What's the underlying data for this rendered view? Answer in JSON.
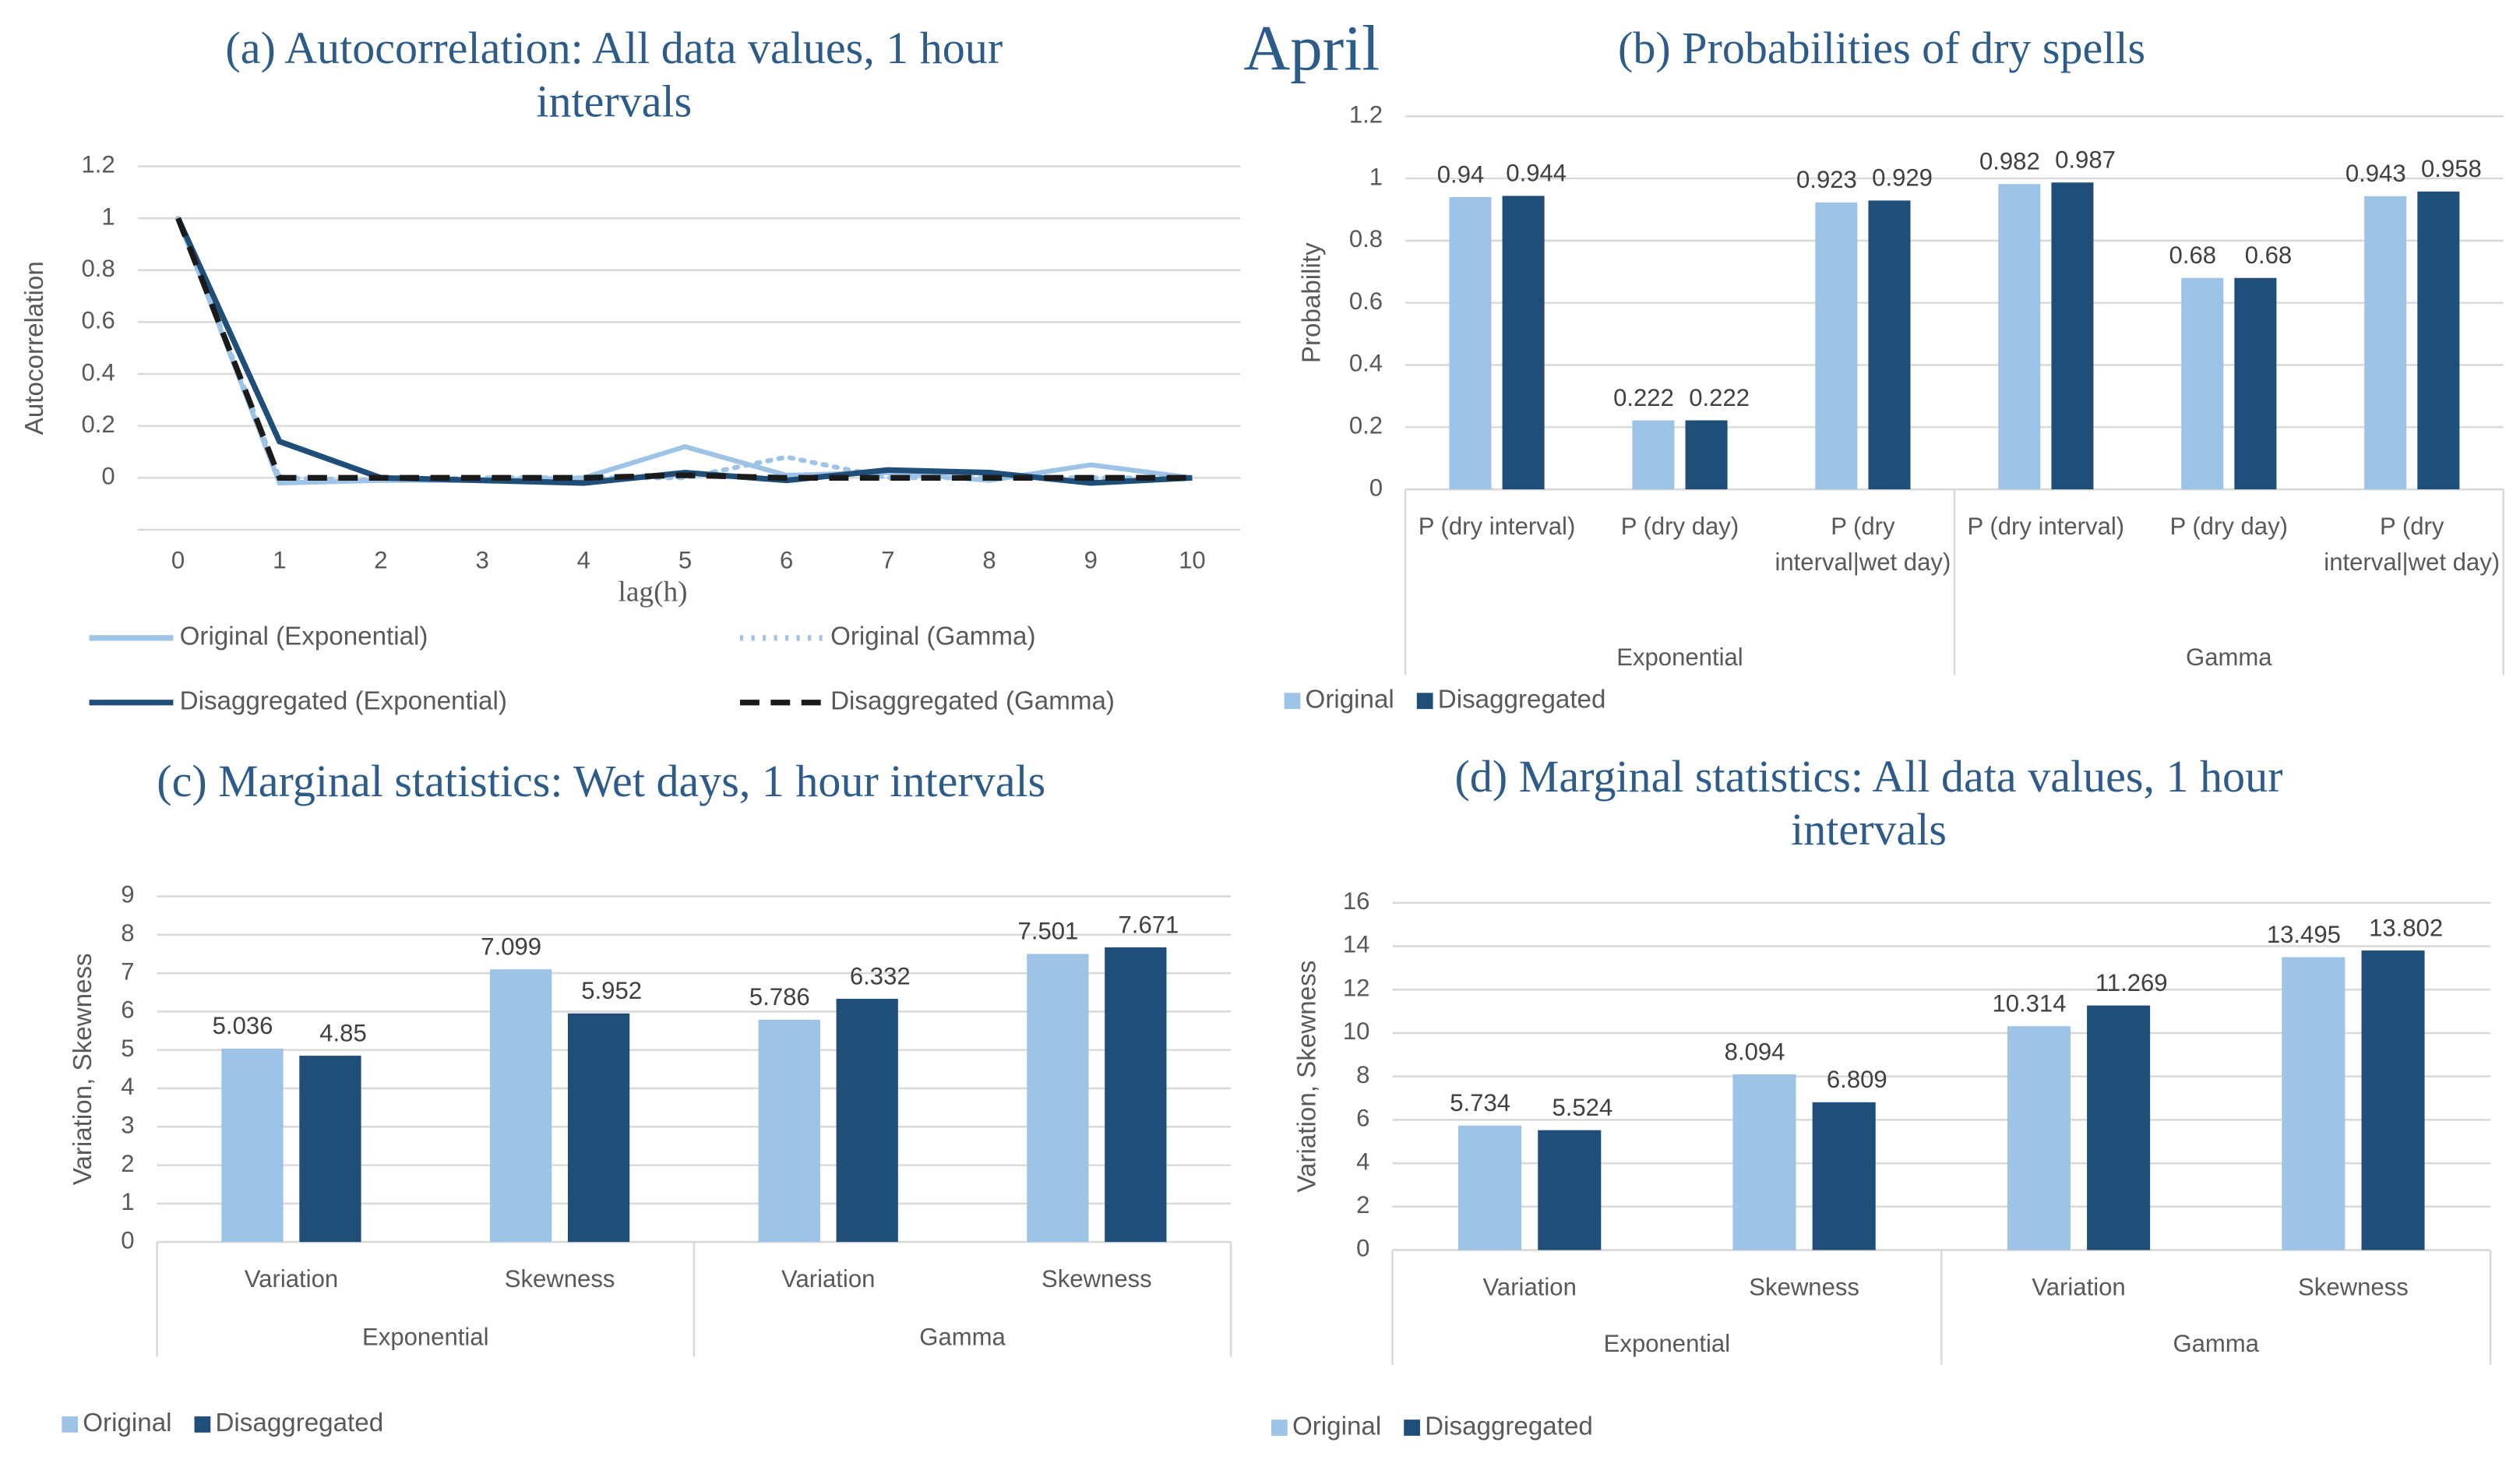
{
  "heading": "April",
  "chart_data": [
    {
      "type": "line",
      "title": "(a) Autocorrelation: All data values, 1 hour intervals",
      "xlabel": "lag(h)",
      "ylabel": "Autocorrelation",
      "x": [
        0,
        1,
        2,
        3,
        4,
        5,
        6,
        7,
        8,
        9,
        10
      ],
      "xlim": [
        0,
        10
      ],
      "xticks": [
        0,
        1,
        2,
        3,
        4,
        5,
        6,
        7,
        8,
        9,
        10
      ],
      "ylim": [
        -0.2,
        1.2
      ],
      "yticks": [
        0,
        0.2,
        0.4,
        0.6,
        0.8,
        1,
        1.2
      ],
      "grid": true,
      "series": [
        {
          "name": "Original (Exponential)",
          "color": "#9dc3e6",
          "dash": "solid",
          "values": [
            1,
            -0.02,
            -0.01,
            -0.01,
            0,
            0.12,
            0.01,
            0.02,
            -0.01,
            0.05,
            0
          ]
        },
        {
          "name": "Original (Gamma)",
          "color": "#9dc3e6",
          "dash": "dotted",
          "values": [
            1,
            0,
            -0.01,
            0,
            0,
            0,
            0.08,
            0,
            0,
            0,
            0
          ]
        },
        {
          "name": "Disaggregated (Exponential)",
          "color": "#1f4e79",
          "dash": "solid",
          "values": [
            1,
            0.14,
            0,
            -0.01,
            -0.02,
            0.02,
            -0.01,
            0.03,
            0.02,
            -0.02,
            0
          ]
        },
        {
          "name": "Disaggregated (Gamma)",
          "color": "#1a1a1a",
          "dash": "dashed",
          "values": [
            1,
            0,
            0,
            0,
            0,
            0.01,
            0,
            0,
            0,
            0,
            0
          ]
        }
      ]
    },
    {
      "type": "bar",
      "title": "(b) Probabilities of dry spells",
      "ylabel": "Probability",
      "groups": [
        {
          "name": "Exponential",
          "categories": [
            "P (dry interval)",
            "P (dry day)",
            "P (dry interval|wet day)"
          ]
        },
        {
          "name": "Gamma",
          "categories": [
            "P (dry interval)",
            "P (dry day)",
            "P (dry interval|wet day)"
          ]
        }
      ],
      "ylim": [
        0,
        1.2
      ],
      "yticks": [
        0,
        0.2,
        0.4,
        0.6,
        0.8,
        1,
        1.2
      ],
      "grid": true,
      "legend": "bottom-left",
      "series": [
        {
          "name": "Original",
          "color": "#9dc3e6",
          "values": [
            0.94,
            0.222,
            0.923,
            0.982,
            0.68,
            0.943
          ]
        },
        {
          "name": "Disaggregated",
          "color": "#1f4e79",
          "values": [
            0.944,
            0.222,
            0.929,
            0.987,
            0.68,
            0.958
          ]
        }
      ]
    },
    {
      "type": "bar",
      "title": "(c) Marginal statistics: Wet days, 1 hour intervals",
      "ylabel": "Variation, Skewness",
      "groups": [
        {
          "name": "Exponential",
          "categories": [
            "Variation",
            "Skewness"
          ]
        },
        {
          "name": "Gamma",
          "categories": [
            "Variation",
            "Skewness"
          ]
        }
      ],
      "ylim": [
        0,
        9
      ],
      "yticks": [
        0,
        1,
        2,
        3,
        4,
        5,
        6,
        7,
        8,
        9
      ],
      "grid": true,
      "legend": "bottom-left",
      "series": [
        {
          "name": "Original",
          "color": "#9dc3e6",
          "values": [
            5.036,
            7.099,
            5.786,
            7.501
          ]
        },
        {
          "name": "Disaggregated",
          "color": "#1f4e79",
          "values": [
            4.85,
            5.952,
            6.332,
            7.671
          ]
        }
      ]
    },
    {
      "type": "bar",
      "title": "(d) Marginal statistics: All data values, 1 hour intervals",
      "ylabel": "Variation, Skewness",
      "groups": [
        {
          "name": "Exponential",
          "categories": [
            "Variation",
            "Skewness"
          ]
        },
        {
          "name": "Gamma",
          "categories": [
            "Variation",
            "Skewness"
          ]
        }
      ],
      "ylim": [
        0,
        16
      ],
      "yticks": [
        0,
        2,
        4,
        6,
        8,
        10,
        12,
        14,
        16
      ],
      "grid": true,
      "legend": "bottom-left",
      "series": [
        {
          "name": "Original",
          "color": "#9dc3e6",
          "values": [
            5.734,
            8.094,
            10.314,
            13.495
          ]
        },
        {
          "name": "Disaggregated",
          "color": "#1f4e79",
          "values": [
            5.524,
            6.809,
            11.269,
            13.802
          ]
        }
      ]
    }
  ]
}
